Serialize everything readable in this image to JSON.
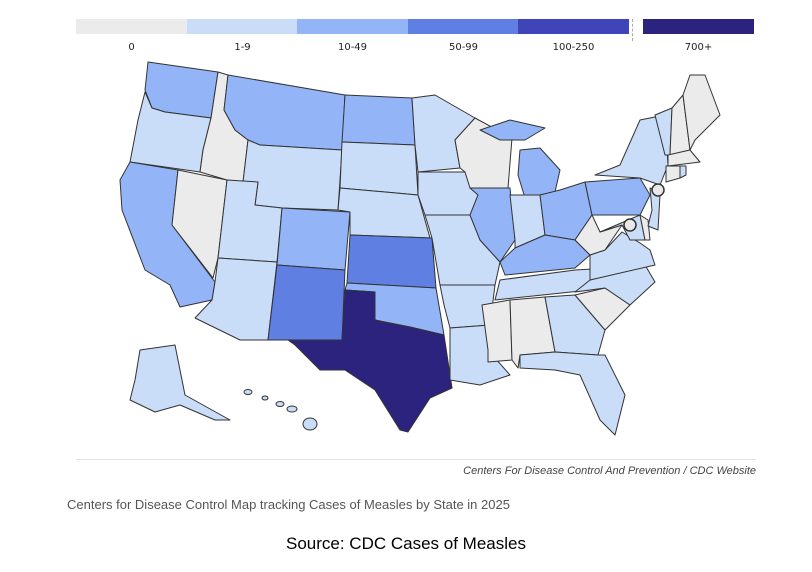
{
  "legend": [
    {
      "label": "0",
      "color": "#ebebeb"
    },
    {
      "label": "1-9",
      "color": "#c9dcf8"
    },
    {
      "label": "10-49",
      "color": "#93b5f7"
    },
    {
      "label": "50-99",
      "color": "#5f7fe3"
    },
    {
      "label": "100-250",
      "color": "#3f44b8"
    },
    {
      "label": "700+",
      "color": "#2b237e"
    }
  ],
  "state_categories": {
    "WA": "10-49",
    "OR": "1-9",
    "CA": "10-49",
    "NV": "0",
    "ID": "0",
    "MT": "10-49",
    "WY": "1-9",
    "UT": "1-9",
    "AZ": "1-9",
    "CO": "10-49",
    "NM": "50-99",
    "ND": "10-49",
    "SD": "1-9",
    "NE": "1-9",
    "KS": "50-99",
    "OK": "10-49",
    "TX": "700+",
    "MN": "1-9",
    "IA": "1-9",
    "MO": "1-9",
    "AR": "1-9",
    "LA": "1-9",
    "WI": "0",
    "IL": "10-49",
    "MI": "10-49",
    "IN": "1-9",
    "OH": "10-49",
    "KY": "10-49",
    "TN": "1-9",
    "MS": "0",
    "AL": "0",
    "GA": "1-9",
    "FL": "1-9",
    "SC": "0",
    "NC": "1-9",
    "VA": "1-9",
    "WV": "0",
    "MD": "1-9",
    "DE": "0",
    "PA": "10-49",
    "NY": "1-9",
    "NJ": "1-9",
    "CT": "0",
    "RI": "1-9",
    "MA": "0",
    "VT": "1-9",
    "NH": "0",
    "ME": "0",
    "AK": "1-9",
    "HI": "1-9"
  },
  "city_markers": [
    "New York City",
    "Washington, DC"
  ],
  "credit": "Centers For Disease Control And Prevention  /  CDC Website",
  "caption": "Centers for Disease Control Map tracking Cases of Measles by State in 2025",
  "source": "Source: CDC Cases of Measles"
}
